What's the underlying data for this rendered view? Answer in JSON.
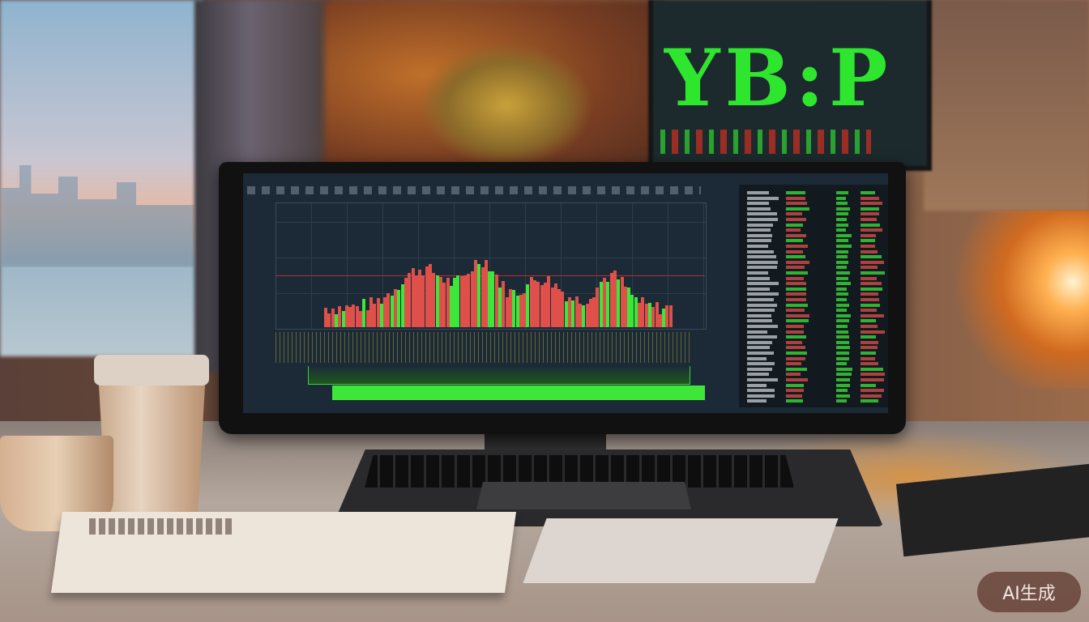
{
  "background_monitor": {
    "text": "YB:P",
    "color": "#2fe62f"
  },
  "watermark": {
    "text": "AI生成"
  },
  "colors": {
    "bull": "#3ee63a",
    "bear": "#e0504a",
    "screen": "#1b2a36"
  }
}
